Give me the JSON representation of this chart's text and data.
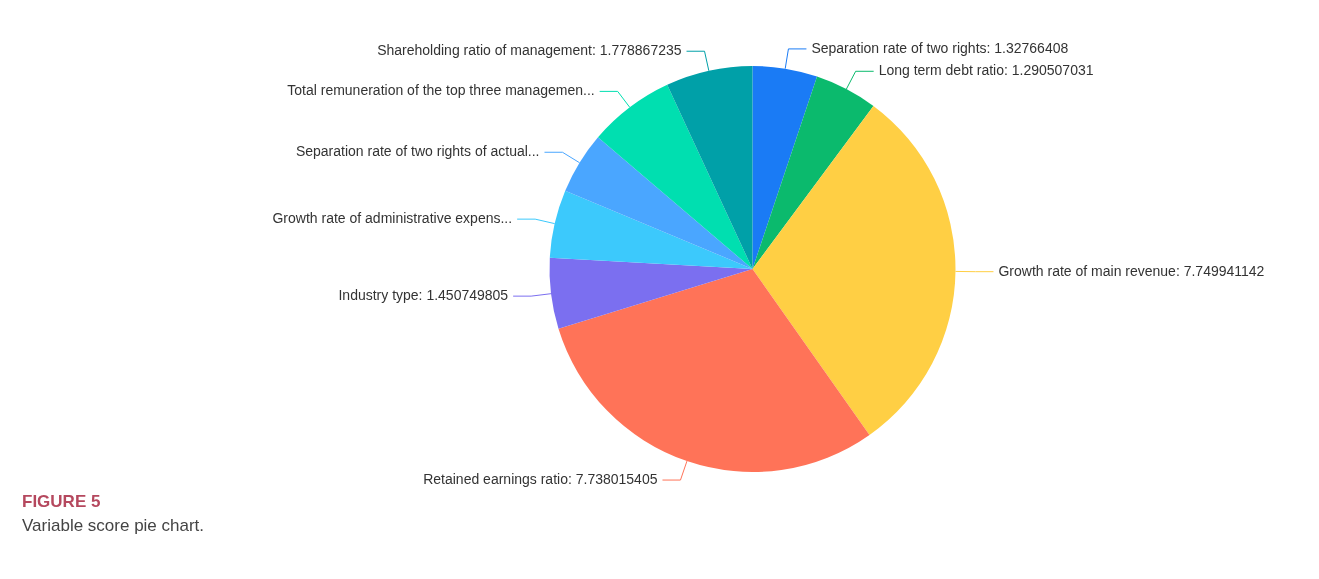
{
  "chart_data": {
    "type": "pie",
    "categories": [
      "Separation rate of two rights",
      "Long term debt ratio",
      "Growth rate of main revenue",
      "Retained earnings ratio",
      "Industry type",
      "Growth rate of administrative expens...",
      "Separation rate of two rights of actual...",
      "Total remuneration of the top three managemen...",
      "Shareholding ratio of management"
    ],
    "values": [
      1.32766408,
      1.290507031,
      7.749941142,
      7.738015405,
      1.450749805,
      1.4,
      1.27,
      1.77,
      1.778867235
    ],
    "value_labels": [
      "1.32766408",
      "1.290507031",
      "7.749941142",
      "7.738015405",
      "1.450749805",
      null,
      null,
      null,
      "1.778867235"
    ],
    "colors": [
      "#1a7bf5",
      "#0bba6d",
      "#ffcf44",
      "#ff7358",
      "#7b6ff0",
      "#3cc9fc",
      "#4aa6ff",
      "#00dfb0",
      "#00a0a8"
    ],
    "legend": false,
    "annotations": [
      "FIGURE 5",
      "Variable score pie chart."
    ]
  }
}
